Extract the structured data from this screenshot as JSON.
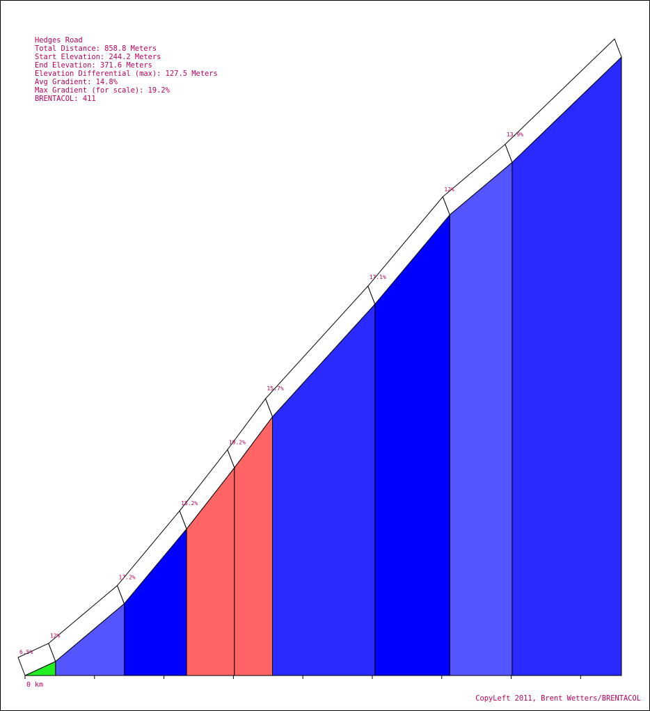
{
  "info": {
    "title": "Hedges Road",
    "lines": [
      "Total Distance: 858.8 Meters",
      "Start Elevation: 244.2 Meters",
      "End Elevation: 371.6 Meters",
      "Elevation Differential (max): 127.5 Meters",
      "Avg Gradient: 14.8%",
      "Max Gradient (for scale): 19.2%",
      "BRENTACOL: 411"
    ]
  },
  "x_axis_label": "0 km",
  "copyright": "CopyLeft 2011, Brent Wetters/BRENTACOL",
  "colors": {
    "green": "#22ee22",
    "light_blue": "#5555ff",
    "blue": "#0000ff",
    "mid_blue": "#2a2aff",
    "red": "#ff6464",
    "text": "#b8005c"
  },
  "chart_data": {
    "type": "area",
    "title": "Hedges Road",
    "xlabel": "",
    "ylabel": "",
    "x_unit": "meters",
    "xlim": [
      0,
      858.8
    ],
    "ylim": [
      244.2,
      371.6
    ],
    "segments": [
      {
        "start_m": 0,
        "end_m": 43.9,
        "start_elev": 244.2,
        "end_elev": 247.1,
        "gradient_label": "6.5%",
        "color": "green"
      },
      {
        "start_m": 43.9,
        "end_m": 142.8,
        "start_elev": 247.1,
        "end_elev": 259.0,
        "gradient_label": "12%",
        "color": "light_blue"
      },
      {
        "start_m": 142.8,
        "end_m": 232.6,
        "start_elev": 259.0,
        "end_elev": 274.4,
        "gradient_label": "17.2%",
        "color": "blue"
      },
      {
        "start_m": 232.6,
        "end_m": 301.5,
        "start_elev": 274.4,
        "end_elev": 287.0,
        "gradient_label": "18.2%",
        "color": "red"
      },
      {
        "start_m": 301.5,
        "end_m": 356.3,
        "start_elev": 287.0,
        "end_elev": 297.5,
        "gradient_label": "19.2%",
        "color": "red"
      },
      {
        "start_m": 356.3,
        "end_m": 503.8,
        "start_elev": 297.5,
        "end_elev": 320.7,
        "gradient_label": "15.7%",
        "color": "mid_blue"
      },
      {
        "start_m": 503.8,
        "end_m": 611.6,
        "start_elev": 320.7,
        "end_elev": 339.1,
        "gradient_label": "17.1%",
        "color": "blue"
      },
      {
        "start_m": 611.6,
        "end_m": 701.4,
        "start_elev": 339.1,
        "end_elev": 349.9,
        "gradient_label": "12%",
        "color": "light_blue"
      },
      {
        "start_m": 701.4,
        "end_m": 858.8,
        "start_elev": 349.9,
        "end_elev": 371.6,
        "gradient_label": "13.9%",
        "color": "mid_blue"
      }
    ]
  }
}
